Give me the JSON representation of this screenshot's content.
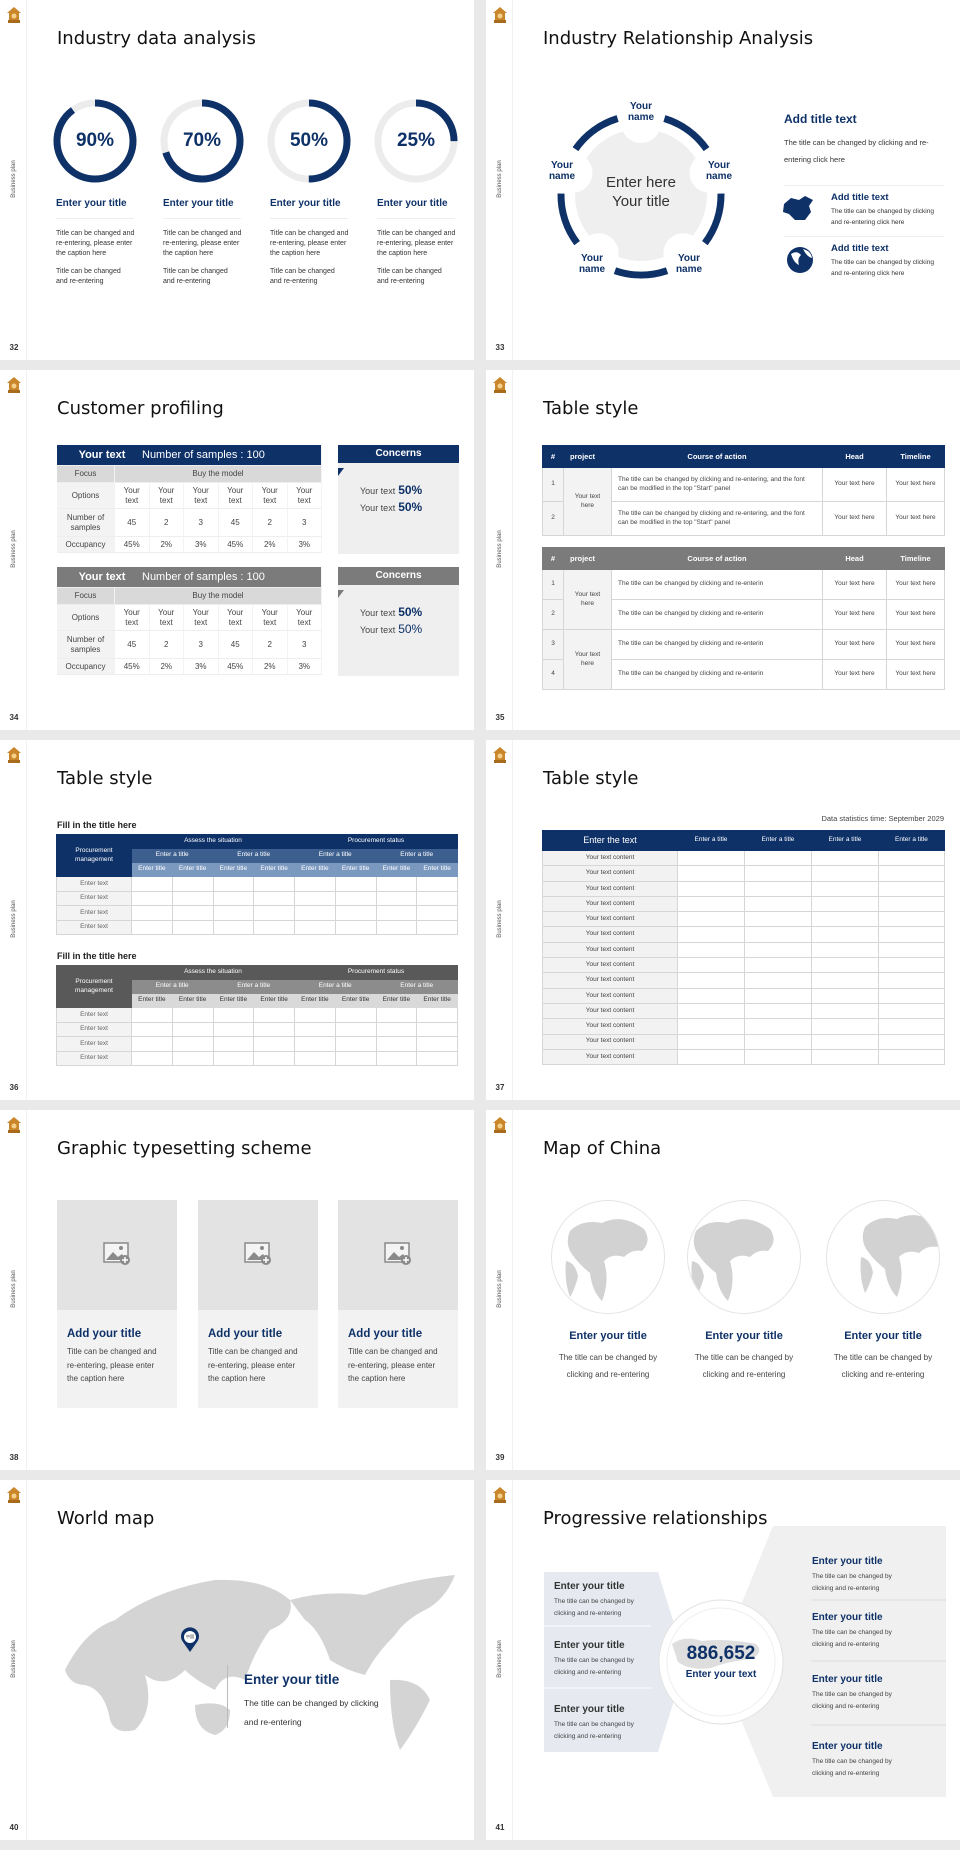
{
  "brand": {
    "logo_icon": "house-logo-icon",
    "sidebar_label": "Business plan",
    "accent": "#0e3168",
    "gray_header": "#7b7b7b",
    "panel": "#f0f0f0",
    "logo_color": "#c9862b"
  },
  "s32": {
    "page": "32",
    "title": "Industry data analysis",
    "items": [
      {
        "percent": 90,
        "label": "90%",
        "title": "Enter your title",
        "text1": "Title can be changed and re-entering, please enter the caption here",
        "text2": "Title can be changed and re-entering"
      },
      {
        "percent": 70,
        "label": "70%",
        "title": "Enter your title",
        "text1": "Title can be changed and re-entering, please enter the caption here",
        "text2": "Title can be changed and re-entering"
      },
      {
        "percent": 50,
        "label": "50%",
        "title": "Enter your title",
        "text1": "Title can be changed and re-entering, please enter the caption here",
        "text2": "Title can be changed and re-entering"
      },
      {
        "percent": 25,
        "label": "25%",
        "title": "Enter your title",
        "text1": "Title can be changed and re-entering, please enter the caption here",
        "text2": "Title can be changed and re-entering"
      }
    ]
  },
  "s33": {
    "page": "33",
    "title": "Industry Relationship Analysis",
    "center": "Enter here Your title",
    "names": [
      "Your name",
      "Your name",
      "Your name",
      "Your name",
      "Your name"
    ],
    "main": {
      "title": "Add title text",
      "text": "The title can be changed by clicking and re-entering click here"
    },
    "items": [
      {
        "icon": "china-map-icon",
        "title": "Add title text",
        "text": "The title can be changed by clicking and re-entering click here"
      },
      {
        "icon": "globe-icon",
        "title": "Add title text",
        "text": "The title can be changed by clicking and re-entering click here"
      }
    ]
  },
  "s34": {
    "page": "34",
    "title": "Customer profiling",
    "tables": [
      {
        "style": "navy",
        "head_left": "Your text",
        "head_center": "Number of samples : 100",
        "focus": "Focus",
        "focus_value": "Buy the model",
        "rows": [
          {
            "label": "Options",
            "cells": [
              "Your text",
              "Your text",
              "Your text",
              "Your text",
              "Your text",
              "Your text"
            ]
          },
          {
            "label": "Number of samples",
            "cells": [
              "45",
              "2",
              "3",
              "45",
              "2",
              "3"
            ]
          },
          {
            "label": "Occupancy",
            "cells": [
              "45%",
              "2%",
              "3%",
              "45%",
              "2%",
              "3%"
            ]
          }
        ],
        "concerns": {
          "title": "Concerns",
          "lines": [
            {
              "text": "Your text",
              "value": "50%"
            },
            {
              "text": "Your text",
              "value": "50%"
            }
          ]
        }
      },
      {
        "style": "gray",
        "head_left": "Your text",
        "head_center": "Number of samples : 100",
        "focus": "Focus",
        "focus_value": "Buy the model",
        "rows": [
          {
            "label": "Options",
            "cells": [
              "Your text",
              "Your text",
              "Your text",
              "Your text",
              "Your text",
              "Your text"
            ]
          },
          {
            "label": "Number of samples",
            "cells": [
              "45",
              "2",
              "3",
              "45",
              "2",
              "3"
            ]
          },
          {
            "label": "Occupancy",
            "cells": [
              "45%",
              "2%",
              "3%",
              "45%",
              "2%",
              "3%"
            ]
          }
        ],
        "concerns": {
          "title": "Concerns",
          "lines": [
            {
              "text": "Your text",
              "value": "50%"
            },
            {
              "text": "Your text",
              "value": "50%"
            }
          ]
        }
      }
    ]
  },
  "s35": {
    "page": "35",
    "title": "Table style",
    "headers": [
      "#",
      "project",
      "Course of action",
      "Head",
      "Timeline"
    ],
    "table1": {
      "project": [
        "Your text here"
      ],
      "rows": [
        {
          "n": "1",
          "action": "The title can be changed by clicking and re-entering, and the font can be modified in the top \"Start\" panel",
          "head": "Your text here",
          "timeline": "Your text here"
        },
        {
          "n": "2",
          "action": "The title can be changed by clicking and re-entering, and the font can be modified in the top \"Start\" panel",
          "head": "Your text here",
          "timeline": "Your text here"
        }
      ]
    },
    "table2": {
      "project": [
        "Your text here",
        "Your text here"
      ],
      "rows": [
        {
          "n": "1",
          "action": "The title can be changed by clicking and re-enterin",
          "head": "Your text here",
          "timeline": "Your text here"
        },
        {
          "n": "2",
          "action": "The title can be changed by clicking and re-enterin",
          "head": "Your text here",
          "timeline": "Your text here"
        },
        {
          "n": "3",
          "action": "The title can be changed by clicking and re-enterin",
          "head": "Your text here",
          "timeline": "Your text here"
        },
        {
          "n": "4",
          "action": "The title can be changed by clicking and re-enterin",
          "head": "Your text here",
          "timeline": "Your text here"
        }
      ]
    }
  },
  "s36": {
    "page": "36",
    "title": "Table style",
    "sections": [
      {
        "heading": "Fill in the title here",
        "style": "navy",
        "corner": "Procurement management",
        "groups": [
          "Assess the situation",
          "Procurement status"
        ],
        "subgroups": [
          "Enter a title",
          "Enter a title",
          "Enter a title",
          "Enter a title"
        ],
        "cols": [
          "Enter title",
          "Enter title",
          "Enter title",
          "Enter title",
          "Enter title",
          "Enter title",
          "Enter title",
          "Enter title"
        ],
        "rows": [
          "Enter text",
          "Enter text",
          "Enter text",
          "Enter text"
        ]
      },
      {
        "heading": "Fill in the title here",
        "style": "gray",
        "corner": "Procurement management",
        "groups": [
          "Assess the situation",
          "Procurement status"
        ],
        "subgroups": [
          "Enter a title",
          "Enter a title",
          "Enter a title",
          "Enter a title"
        ],
        "cols": [
          "Enter title",
          "Enter title",
          "Enter title",
          "Enter title",
          "Enter title",
          "Enter title",
          "Enter title",
          "Enter title"
        ],
        "rows": [
          "Enter text",
          "Enter text",
          "Enter text",
          "Enter text"
        ]
      }
    ]
  },
  "s37": {
    "page": "37",
    "title": "Table style",
    "note": "Data statistics time: September 2029",
    "headers": [
      "Enter the text",
      "Enter a title",
      "Enter a title",
      "Enter a title",
      "Enter a title"
    ],
    "rows": [
      "Your text content",
      "Your text content",
      "Your text content",
      "Your text content",
      "Your text content",
      "Your text content",
      "Your text content",
      "Your text content",
      "Your text content",
      "Your text content",
      "Your text content",
      "Your text content",
      "Your text content",
      "Your text content"
    ]
  },
  "s38": {
    "page": "38",
    "title": "Graphic typesetting scheme",
    "cards": [
      {
        "icon": "add-image-icon",
        "title": "Add your title",
        "text": "Title can be changed and re-entering, please enter the caption here"
      },
      {
        "icon": "add-image-icon",
        "title": "Add your title",
        "text": "Title can be changed and re-entering, please enter the caption here"
      },
      {
        "icon": "add-image-icon",
        "title": "Add your title",
        "text": "Title can be changed and re-entering, please enter the caption here"
      }
    ]
  },
  "s39": {
    "page": "39",
    "title": "Map of China",
    "items": [
      {
        "title": "Enter your title",
        "text": "The title can be changed by clicking and re-entering"
      },
      {
        "title": "Enter your title",
        "text": "The title can be changed by clicking and re-entering"
      },
      {
        "title": "Enter your title",
        "text": "The title can be changed by clicking and re-entering"
      }
    ]
  },
  "s40": {
    "page": "40",
    "title": "World map",
    "pin_label": "中国",
    "callout": {
      "title": "Enter your title",
      "text": "The title can be changed by clicking and re-entering"
    }
  },
  "s41": {
    "page": "41",
    "title": "Progressive relationships",
    "center": {
      "value": "886,652",
      "label": "Enter your text"
    },
    "left": [
      {
        "title": "Enter your title",
        "text": "The title can be changed by clicking and re-entering"
      },
      {
        "title": "Enter your title",
        "text": "The title can be changed by clicking and re-entering"
      },
      {
        "title": "Enter your title",
        "text": "The title can be changed by clicking and re-entering"
      }
    ],
    "right": [
      {
        "title": "Enter your title",
        "text": "The title can be changed by clicking and re-entering"
      },
      {
        "title": "Enter your title",
        "text": "The title can be changed by clicking and re-entering"
      },
      {
        "title": "Enter your title",
        "text": "The title can be changed by clicking and re-entering"
      },
      {
        "title": "Enter your title",
        "text": "The title can be changed by clicking and re-entering"
      }
    ]
  }
}
